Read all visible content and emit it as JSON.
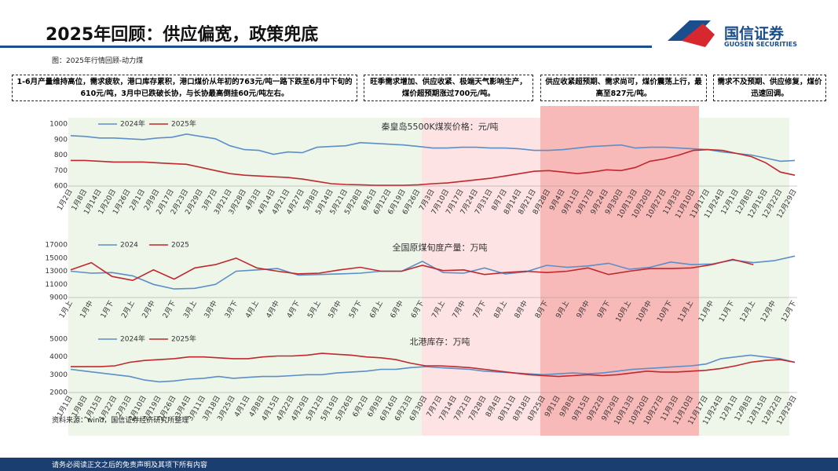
{
  "header": {
    "title": "2025年回顾：供应偏宽，政策兜底",
    "logo": "国信证券",
    "logo_en": "GUOSEN SECURITIES",
    "caption": "图：2025年行情回顾-动力煤"
  },
  "notes": [
    "1-6月产量维持高位，需求疲软，港口库存累积，港口煤价从年初的763元/吨一路下跌至6月中下旬的610元/吨，3月中已跌破长协，与长协最高倒挂60元/吨左右。",
    "旺季需求增加、供应收紧、极端天气影响生产，煤价超预期涨过700元/吨。",
    "供应收紧超预期、需求尚可，煤价震荡上行，最高至827元/吨。",
    "需求不及预期、供应修复，煤价迅速回调。"
  ],
  "source": "资料来源：wind，国信证券经济研究所整理",
  "footer": "请务必阅读正文之后的免责声明及其项下所有内容",
  "chart_data": [
    {
      "type": "line",
      "title": "秦皇岛5500K煤炭价格：元/吨",
      "ylim": [
        600,
        1000
      ],
      "yticks": [
        600,
        700,
        800,
        900,
        1000
      ],
      "categories": [
        "1月2日",
        "1月8日",
        "1月14日",
        "1月20日",
        "1月26日",
        "2月1日",
        "2月9日",
        "2月17日",
        "2月23日",
        "2月29日",
        "3月7日",
        "3月21日",
        "3月28日",
        "4月3日",
        "4月14日",
        "4月21日",
        "4月27日",
        "5月8日",
        "5月14日",
        "5月21日",
        "5月28日",
        "6月5日",
        "6月12日",
        "6月19日",
        "6月26日",
        "7月3日",
        "7月10日",
        "7月17日",
        "7月24日",
        "7月31日",
        "8月7日",
        "8月14日",
        "8月21日",
        "8月28日",
        "9月4日",
        "9月11日",
        "9月17日",
        "9月24日",
        "9月30日",
        "10月13日",
        "10月20日",
        "10月27日",
        "11月3日",
        "11月10日",
        "11月17日",
        "11月24日",
        "12月1日",
        "12月8日",
        "12月15日",
        "12月22日",
        "12月29日"
      ],
      "series": [
        {
          "name": "2024年",
          "color": "#5b8fc7",
          "values": [
            925,
            920,
            910,
            910,
            905,
            900,
            910,
            915,
            935,
            920,
            905,
            860,
            835,
            830,
            805,
            820,
            815,
            850,
            855,
            860,
            880,
            875,
            870,
            865,
            855,
            845,
            845,
            850,
            850,
            845,
            845,
            840,
            830,
            830,
            835,
            845,
            855,
            860,
            865,
            845,
            850,
            850,
            845,
            840,
            835,
            820,
            810,
            800,
            780,
            760,
            765
          ]
        },
        {
          "name": "2025年",
          "color": "#c0282d",
          "values": [
            765,
            765,
            760,
            755,
            755,
            755,
            750,
            745,
            740,
            720,
            700,
            680,
            670,
            665,
            660,
            655,
            645,
            630,
            615,
            610,
            608,
            605,
            605,
            605,
            608,
            615,
            620,
            630,
            640,
            650,
            665,
            680,
            695,
            700,
            690,
            680,
            690,
            705,
            700,
            720,
            760,
            775,
            800,
            830,
            835,
            830,
            810,
            790,
            750,
            690,
            670
          ]
        }
      ]
    },
    {
      "type": "line",
      "title": "全国原煤旬度产量：万吨",
      "ylim": [
        9000,
        17000
      ],
      "yticks": [
        9000,
        11000,
        13000,
        15000,
        17000
      ],
      "categories": [
        "1月上",
        "1月中",
        "1月下",
        "2月上",
        "2月中",
        "2月下",
        "3月上",
        "3月中",
        "3月下",
        "4月上",
        "4月中",
        "4月下",
        "5月上",
        "5月中",
        "5月下",
        "6月上",
        "6月中",
        "6月下",
        "7月上",
        "7月中",
        "7月下",
        "8月上",
        "8月中",
        "8月下",
        "9月上",
        "9月中",
        "9月下",
        "10月上",
        "10月中",
        "10月下",
        "11月上",
        "11月中",
        "11月下",
        "12月上",
        "12月中",
        "12月下"
      ],
      "series": [
        {
          "name": "2024",
          "color": "#5b8fc7",
          "values": [
            13000,
            12700,
            12800,
            12300,
            11000,
            10300,
            10400,
            11000,
            13000,
            13200,
            13400,
            12400,
            12500,
            12600,
            12700,
            13000,
            13000,
            14500,
            12800,
            12700,
            13500,
            12600,
            12900,
            13900,
            13600,
            13800,
            14200,
            13300,
            13600,
            14400,
            14000,
            14100,
            14700,
            14300,
            14600,
            15300
          ]
        },
        {
          "name": "2025",
          "color": "#c0282d",
          "values": [
            13200,
            14300,
            12200,
            11600,
            13200,
            11800,
            13500,
            14000,
            15000,
            13500,
            13000,
            12600,
            12700,
            13200,
            13600,
            13000,
            13000,
            13900,
            13100,
            13200,
            12500,
            12800,
            13000,
            12800,
            13000,
            13500,
            12500,
            13000,
            13400,
            13400,
            13500,
            14000,
            14800,
            14000,
            null,
            null
          ]
        }
      ]
    },
    {
      "type": "line",
      "title": "北港库存：万吨",
      "ylim": [
        2000,
        5000
      ],
      "yticks": [
        2000,
        3000,
        4000,
        5000
      ],
      "categories": [
        "1月1日",
        "1月8日",
        "1月15日",
        "1月22日",
        "2月3日",
        "2月10日",
        "2月19日",
        "2月26日",
        "3月4日",
        "3月11日",
        "3月18日",
        "3月25日",
        "4月1日",
        "4月8日",
        "4月15日",
        "4月22日",
        "4月29日",
        "5月12日",
        "5月19日",
        "5月26日",
        "6月2日",
        "6月9日",
        "6月16日",
        "6月23日",
        "6月30日",
        "7月7日",
        "7月14日",
        "7月21日",
        "7月28日",
        "8月4日",
        "8月11日",
        "8月18日",
        "8月25日",
        "9月1日",
        "9月8日",
        "9月15日",
        "9月22日",
        "9月29日",
        "10月13日",
        "10月20日",
        "10月27日",
        "11月3日",
        "11月10日",
        "11月17日",
        "11月24日",
        "12月1日",
        "12月8日",
        "12月15日",
        "12月22日",
        "12月29日"
      ],
      "series": [
        {
          "name": "2024年",
          "color": "#5b8fc7",
          "values": [
            3300,
            3200,
            3100,
            3000,
            2900,
            2700,
            2600,
            2650,
            2750,
            2800,
            2900,
            2800,
            2850,
            2900,
            2900,
            2950,
            3000,
            3000,
            3100,
            3150,
            3200,
            3300,
            3300,
            3400,
            3450,
            3400,
            3350,
            3300,
            3200,
            3150,
            3100,
            3050,
            3000,
            3050,
            3100,
            3050,
            3100,
            3200,
            3300,
            3350,
            3400,
            3450,
            3500,
            3600,
            3900,
            4000,
            4100,
            4000,
            3900,
            3700
          ]
        },
        {
          "name": "2025年",
          "color": "#c0282d",
          "values": [
            3450,
            3450,
            3450,
            3500,
            3700,
            3800,
            3850,
            3900,
            4000,
            4000,
            3950,
            3900,
            3900,
            4000,
            4050,
            4050,
            4100,
            4200,
            4150,
            4100,
            4000,
            3950,
            3850,
            3650,
            3500,
            3500,
            3450,
            3400,
            3300,
            3200,
            3100,
            3000,
            2950,
            2900,
            2950,
            3000,
            2950,
            3000,
            3100,
            3200,
            3150,
            3150,
            3200,
            3250,
            3350,
            3500,
            3700,
            3800,
            3850,
            3700
          ]
        }
      ]
    }
  ]
}
